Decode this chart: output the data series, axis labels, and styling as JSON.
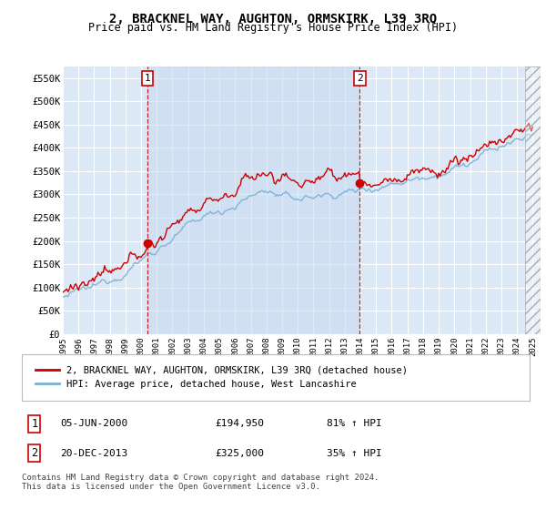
{
  "title": "2, BRACKNEL WAY, AUGHTON, ORMSKIRK, L39 3RQ",
  "subtitle": "Price paid vs. HM Land Registry's House Price Index (HPI)",
  "legend_label_red": "2, BRACKNEL WAY, AUGHTON, ORMSKIRK, L39 3RQ (detached house)",
  "legend_label_blue": "HPI: Average price, detached house, West Lancashire",
  "transaction1_date": "05-JUN-2000",
  "transaction1_price": "£194,950",
  "transaction1_hpi": "81% ↑ HPI",
  "transaction2_date": "20-DEC-2013",
  "transaction2_price": "£325,000",
  "transaction2_hpi": "35% ↑ HPI",
  "footer": "Contains HM Land Registry data © Crown copyright and database right 2024.\nThis data is licensed under the Open Government Licence v3.0.",
  "ylim": [
    0,
    575000
  ],
  "yticks": [
    0,
    50000,
    100000,
    150000,
    200000,
    250000,
    300000,
    350000,
    400000,
    450000,
    500000,
    550000
  ],
  "ytick_labels": [
    "£0",
    "£50K",
    "£100K",
    "£150K",
    "£200K",
    "£250K",
    "£300K",
    "£350K",
    "£400K",
    "£450K",
    "£500K",
    "£550K"
  ],
  "background_color": "#dce8f5",
  "plot_bg_color": "#dce8f5",
  "highlight_color": "#c8dcf0",
  "red_color": "#cc0000",
  "blue_color": "#7bafd4",
  "transaction1_x": 2000.42,
  "transaction2_x": 2013.96,
  "transaction1_y": 194950,
  "transaction2_y": 325000,
  "hpi_seed": 12345,
  "xlim_start": 1995,
  "xlim_end": 2025.5
}
